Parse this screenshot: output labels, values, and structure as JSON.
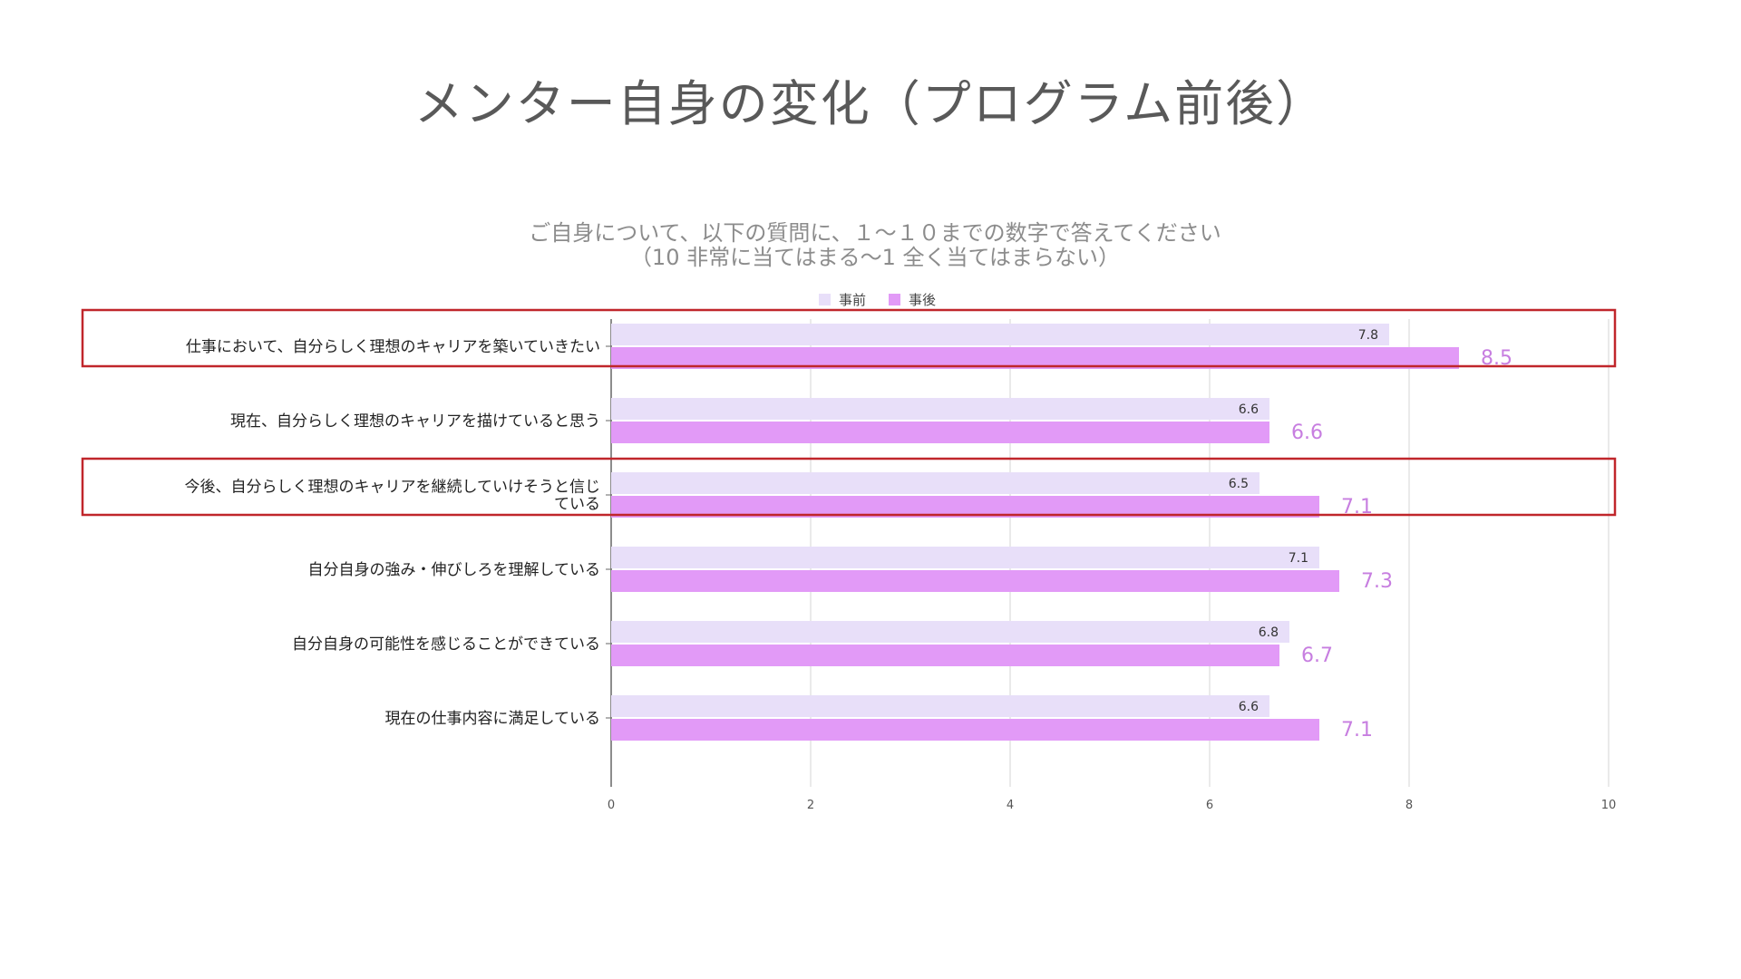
{
  "slide": {
    "title": "メンター自身の変化（プログラム前後）"
  },
  "colors": {
    "before": "#e8dff9",
    "after": "#e29af7",
    "highlight_box": "#c0262b",
    "gridline": "#e3e3e3",
    "axis": "#666666"
  },
  "chart_data": {
    "type": "bar",
    "orientation": "horizontal",
    "title": "ご自身について、以下の質問に、１〜１０までの数字で答えてください",
    "subtitle": "（10 非常に当てはまる〜1 全く当てはまらない）",
    "categories": [
      [
        "仕事において、自分らしく理想のキャリアを築いていきたい"
      ],
      [
        "現在、自分らしく理想のキャリアを描けていると思う"
      ],
      [
        "今後、自分らしく理想のキャリアを継続していけそうと信じ",
        "ている"
      ],
      [
        "自分自身の強み・伸びしろを理解している"
      ],
      [
        "自分自身の可能性を感じることができている"
      ],
      [
        "現在の仕事内容に満足している"
      ]
    ],
    "series": [
      {
        "name": "事前",
        "values": [
          7.8,
          6.6,
          6.5,
          7.1,
          6.8,
          6.6
        ]
      },
      {
        "name": "事後",
        "values": [
          8.5,
          6.6,
          7.1,
          7.3,
          6.7,
          7.1
        ]
      }
    ],
    "xlim": [
      0,
      10
    ],
    "ticks": [
      0,
      2,
      4,
      6,
      8,
      10
    ],
    "grid": true,
    "legend_position": "top",
    "highlighted_categories": [
      0,
      2
    ]
  }
}
